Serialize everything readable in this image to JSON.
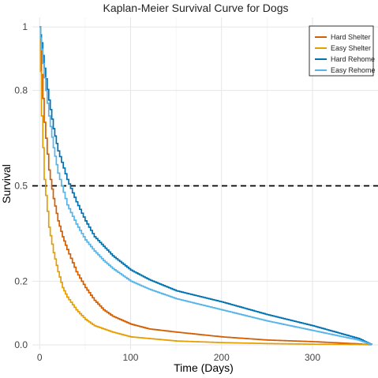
{
  "chart_data": {
    "type": "line",
    "title": "Kaplan-Meier Survival Curve for Dogs",
    "xlabel": "Time (Days)",
    "ylabel": "Survival",
    "xlim": [
      -8,
      372
    ],
    "ylim": [
      -0.015,
      1.03
    ],
    "xticks": [
      0,
      100,
      200,
      300
    ],
    "yticks": [
      0.0,
      0.2,
      0.5,
      0.8,
      1.0
    ],
    "ytick_labels": [
      "0.0",
      "0.2",
      "0.5",
      "0.8",
      "1"
    ],
    "grid": true,
    "legend_position": "top-right",
    "reference_line": {
      "y": 0.5,
      "style": "dashed",
      "color": "#000000"
    },
    "series": [
      {
        "name": "Hard Shelter",
        "color": "#D55E00",
        "x": [
          0,
          2,
          5,
          10,
          15,
          20,
          25,
          30,
          40,
          50,
          60,
          70,
          80,
          100,
          120,
          150,
          200,
          250,
          300,
          350,
          365
        ],
        "y": [
          1.0,
          0.85,
          0.7,
          0.55,
          0.46,
          0.39,
          0.34,
          0.3,
          0.23,
          0.18,
          0.14,
          0.11,
          0.09,
          0.065,
          0.05,
          0.04,
          0.025,
          0.015,
          0.01,
          0.003,
          0.0
        ]
      },
      {
        "name": "Easy Shelter",
        "color": "#E69F00",
        "x": [
          0,
          2,
          5,
          10,
          15,
          20,
          25,
          30,
          40,
          50,
          60,
          80,
          100,
          150,
          200,
          250,
          300,
          350,
          365
        ],
        "y": [
          1.0,
          0.72,
          0.52,
          0.37,
          0.29,
          0.23,
          0.18,
          0.15,
          0.11,
          0.08,
          0.06,
          0.04,
          0.025,
          0.012,
          0.007,
          0.004,
          0.002,
          0.001,
          0.0
        ]
      },
      {
        "name": "Hard Rehome",
        "color": "#0072B2",
        "x": [
          0,
          2,
          5,
          10,
          15,
          20,
          30,
          40,
          50,
          60,
          70,
          80,
          100,
          120,
          150,
          200,
          250,
          300,
          350,
          365
        ],
        "y": [
          1.0,
          0.95,
          0.87,
          0.77,
          0.68,
          0.61,
          0.52,
          0.45,
          0.39,
          0.34,
          0.31,
          0.28,
          0.235,
          0.205,
          0.17,
          0.135,
          0.095,
          0.06,
          0.02,
          0.0
        ]
      },
      {
        "name": "Easy Rehome",
        "color": "#56B4E9",
        "x": [
          0,
          2,
          5,
          10,
          15,
          20,
          30,
          40,
          50,
          60,
          70,
          80,
          100,
          120,
          150,
          200,
          250,
          300,
          350,
          365
        ],
        "y": [
          1.0,
          0.93,
          0.84,
          0.72,
          0.62,
          0.54,
          0.44,
          0.38,
          0.33,
          0.295,
          0.265,
          0.24,
          0.2,
          0.175,
          0.145,
          0.11,
          0.075,
          0.045,
          0.015,
          0.0
        ]
      }
    ]
  }
}
